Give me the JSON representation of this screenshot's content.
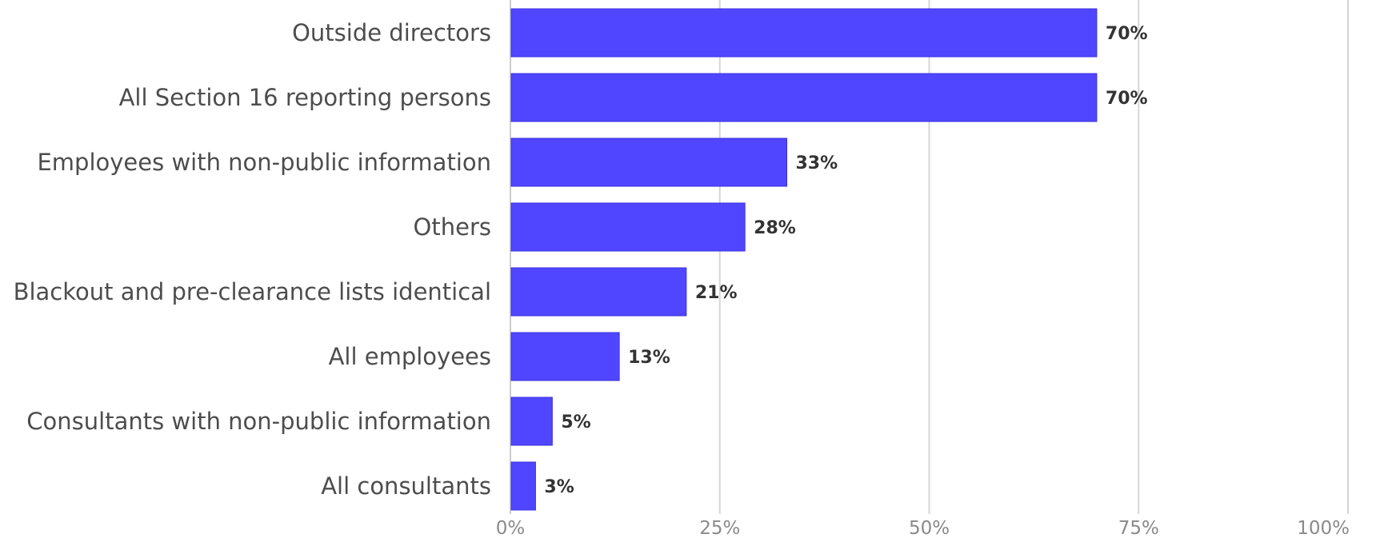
{
  "chart_data": {
    "type": "bar",
    "orientation": "horizontal",
    "title": "",
    "xlabel": "",
    "ylabel": "",
    "categories": [
      "Outside directors",
      "All Section 16 reporting persons",
      "Employees with non-public information",
      "Others",
      "Blackout and pre-clearance lists identical",
      "All employees",
      "Consultants with non-public information",
      "All consultants"
    ],
    "values": [
      70,
      70,
      33,
      28,
      21,
      13,
      5,
      3
    ],
    "value_labels": [
      "70%",
      "70%",
      "33%",
      "28%",
      "21%",
      "13%",
      "5%",
      "3%"
    ],
    "xlim": [
      0,
      100
    ],
    "ticks": [
      0,
      25,
      50,
      75,
      100
    ],
    "tick_labels": [
      "0%",
      "25%",
      "50%",
      "75%",
      "100%"
    ],
    "grid": true,
    "legend": "none",
    "colors": {
      "bar": "#5046ff",
      "bar_border": "#3a30e0"
    }
  }
}
